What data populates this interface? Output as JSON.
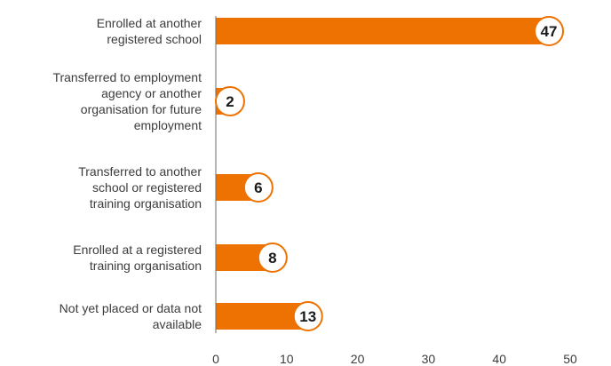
{
  "colors": {
    "bar": "#EE7202",
    "bubble_fill": "#FFFFFF",
    "bubble_stroke": "#EE7202",
    "axis": "#6e6e6e",
    "text": "#3c3c3c"
  },
  "chart_data": {
    "type": "bar",
    "orientation": "horizontal",
    "categories": [
      "Enrolled at another registered school",
      "Transferred to employment agency or another organisation for future employment",
      "Transferred to another school or registered training organisation",
      "Enrolled at a registered training organisation",
      "Not yet placed or data not available"
    ],
    "category_lines": [
      [
        "Enrolled at another",
        "registered school"
      ],
      [
        "Transferred to employment",
        "agency or another",
        "organisation for future",
        "employment"
      ],
      [
        "Transferred to another",
        "school or registered",
        "training organisation"
      ],
      [
        "Enrolled at a registered",
        "training organisation"
      ],
      [
        "Not yet placed or data not",
        "available"
      ]
    ],
    "values": [
      47,
      2,
      6,
      8,
      13
    ],
    "xlim": [
      0,
      50
    ],
    "xticks": [
      0,
      10,
      20,
      30,
      40,
      50
    ],
    "grid": false,
    "legend": "none",
    "title": "",
    "xlabel": "",
    "ylabel": ""
  }
}
